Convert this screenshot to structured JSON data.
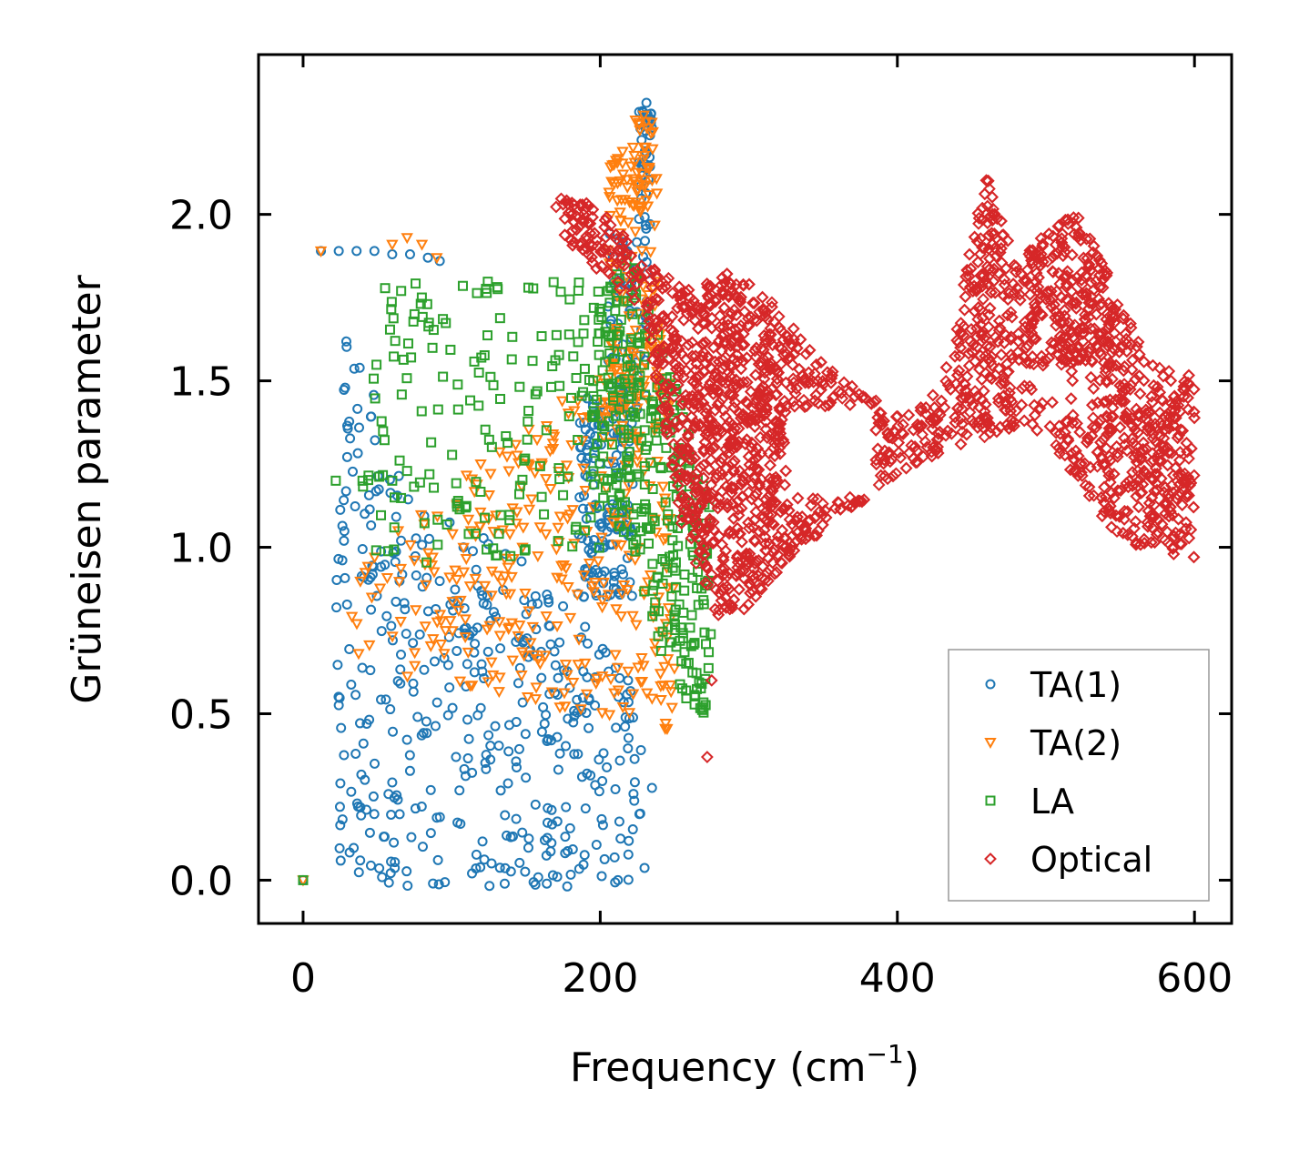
{
  "chart_data": {
    "type": "scatter",
    "title": "",
    "xlabel": "Frequency (cm",
    "xlabel_sup": "−1",
    "xlabel_close": ")",
    "ylabel": "Grüneisen parameter",
    "xlim": [
      -30,
      625
    ],
    "ylim": [
      -0.13,
      2.48
    ],
    "xticks": [
      0,
      200,
      400,
      600
    ],
    "xtick_labels": [
      "0",
      "200",
      "400",
      "600"
    ],
    "yticks": [
      0.0,
      0.5,
      1.0,
      1.5,
      2.0
    ],
    "ytick_labels": [
      "0.0",
      "0.5",
      "1.0",
      "1.5",
      "2.0"
    ],
    "grid": false,
    "legend_position": "bottom-right",
    "series": [
      {
        "name": "TA(1)",
        "marker": "circle",
        "color": "#1f77b4",
        "anchors": [
          [
            0,
            0.0
          ],
          [
            12,
            1.89
          ],
          [
            24,
            1.89
          ],
          [
            36,
            1.89
          ],
          [
            48,
            1.89
          ],
          [
            60,
            1.88
          ],
          [
            72,
            1.88
          ],
          [
            84,
            1.87
          ],
          [
            92,
            1.86
          ]
        ],
        "clouds": [
          {
            "n": 430,
            "x": [
              22,
              235
            ],
            "y": [
              -0.02,
              1.75
            ],
            "shape": "lowtri"
          },
          {
            "n": 140,
            "x": [
              185,
              222
            ],
            "y": [
              0.85,
              1.45
            ],
            "shape": "box"
          },
          {
            "n": 60,
            "x": [
              205,
              232
            ],
            "y": [
              1.4,
              1.95
            ],
            "shape": "box"
          },
          {
            "n": 40,
            "x": [
              226,
              235
            ],
            "y": [
              1.95,
              2.36
            ],
            "shape": "box"
          }
        ]
      },
      {
        "name": "TA(2)",
        "marker": "triangle-down",
        "color": "#ff7f0e",
        "anchors": [
          [
            0,
            0.0
          ],
          [
            12,
            1.89
          ],
          [
            60,
            1.91
          ],
          [
            70,
            1.93
          ],
          [
            80,
            1.91
          ],
          [
            90,
            1.87
          ]
        ],
        "clouds": [
          {
            "n": 340,
            "x": [
              28,
              250
            ],
            "y": [
              0.45,
              1.7
            ],
            "shape": "uptri"
          },
          {
            "n": 120,
            "x": [
              205,
              240
            ],
            "y": [
              1.3,
              2.2
            ],
            "shape": "box"
          },
          {
            "n": 30,
            "x": [
              222,
              236
            ],
            "y": [
              2.0,
              2.3
            ],
            "shape": "box"
          }
        ]
      },
      {
        "name": "LA",
        "marker": "square",
        "color": "#2ca02c",
        "anchors": [
          [
            0,
            0.0
          ],
          [
            22,
            1.2
          ],
          [
            40,
            1.2
          ],
          [
            60,
            1.2
          ],
          [
            62,
            1.62
          ],
          [
            66,
            1.77
          ],
          [
            75,
            1.7
          ]
        ],
        "clouds": [
          {
            "n": 170,
            "x": [
              40,
              200
            ],
            "y": [
              0.95,
              1.8
            ],
            "shape": "box"
          },
          {
            "n": 330,
            "x": [
              195,
              275
            ],
            "y": [
              0.45,
              1.9
            ],
            "shape": "rband"
          }
        ]
      },
      {
        "name": "Optical",
        "marker": "diamond",
        "color": "#d62728",
        "anchors": [
          [
            272,
            0.37
          ],
          [
            275,
            0.6
          ]
        ],
        "clouds": [
          {
            "n": 3600,
            "x": [
              170,
              600
            ],
            "y": [
              0.75,
              2.12
            ],
            "shape": "band"
          }
        ]
      }
    ]
  }
}
